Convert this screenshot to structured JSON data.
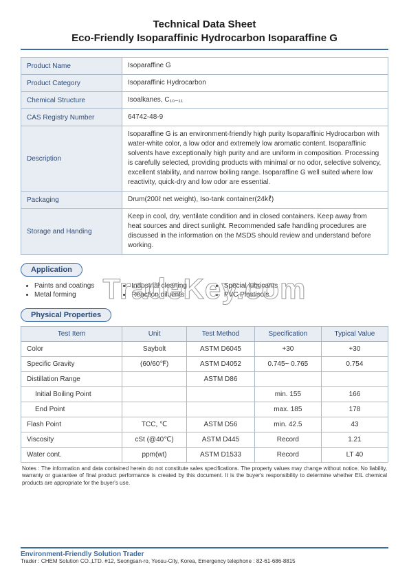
{
  "title_line1": "Technical Data Sheet",
  "title_line2": "Eco-Friendly Isoparaffinic Hydrocarbon Isoparaffine G",
  "info": [
    {
      "label": "Product Name",
      "value": "Isoparaffine G"
    },
    {
      "label": "Product Category",
      "value": "Isoparaffinic Hydrocarbon"
    },
    {
      "label": "Chemical Structure",
      "value": "Isoalkanes, C₁₀₋₁₁"
    },
    {
      "label": "CAS Registry Number",
      "value": "64742-48-9"
    },
    {
      "label": "Description",
      "value": "Isoparaffine G  is an environment-friendly high purity Isoparaffinic Hydrocarbon with water-white color, a low odor and extremely low aromatic content. Isoparaffinic solvents have exceptionally high purity and are uniform in composition. Processing is carefully selected, providing products with minimal or no odor, selective solvency, excellent stability, and narrow boiling range. Isoparaffine G  well suited where low reactivity, quick-dry and low odor are essential."
    },
    {
      "label": "Packaging",
      "value": "Drum(200ℓ net weight), Iso-tank container(24㎘)"
    },
    {
      "label": "Storage and Handing",
      "value": "Keep in cool, dry, ventilate condition and in closed containers. Keep away from heat sources and direct sunlight. Recommended safe handling procedures are discussed in the information on the MSDS should review and understand before working."
    }
  ],
  "sections": {
    "app": "Application",
    "phys": "Physical Properties"
  },
  "apps": {
    "col1": [
      "Paints and coatings",
      "Metal forming"
    ],
    "col2": [
      "Industrial cleaning",
      "Reaction diluents"
    ],
    "col3": [
      "Special lubricants",
      "PVC Plastisols"
    ]
  },
  "phys": {
    "headers": [
      "Test Item",
      "Unit",
      "Test Method",
      "Specification",
      "Typical Value"
    ],
    "rows": [
      {
        "item": "Color",
        "indent": false,
        "unit": "Saybolt",
        "method": "ASTM D6045",
        "spec": "+30",
        "typ": "+30"
      },
      {
        "item": "Specific Gravity",
        "indent": false,
        "unit": "(60/60℉)",
        "method": "ASTM D4052",
        "spec": "0.745~ 0.765",
        "typ": "0.754"
      },
      {
        "item": "Distillation Range",
        "indent": false,
        "unit": "",
        "method": "ASTM D86",
        "spec": "",
        "typ": ""
      },
      {
        "item": "Initial Boiling Point",
        "indent": true,
        "unit": "",
        "method": "",
        "spec": "min. 155",
        "typ": "166"
      },
      {
        "item": "End Point",
        "indent": true,
        "unit": "",
        "method": "",
        "spec": "max. 185",
        "typ": "178"
      },
      {
        "item": "Flash Point",
        "indent": false,
        "unit": "TCC, ℃",
        "method": "ASTM D56",
        "spec": "min. 42.5",
        "typ": "43"
      },
      {
        "item": "Viscosity",
        "indent": false,
        "unit": "cSt (@40℃)",
        "method": "ASTM D445",
        "spec": "Record",
        "typ": "1.21"
      },
      {
        "item": "Water cont.",
        "indent": false,
        "unit": "ppm(wt)",
        "method": "ASTM D1533",
        "spec": "Record",
        "typ": "LT 40"
      }
    ]
  },
  "notes": "Notes : The information and data contained herein do not constitute sales specifications. The property values may change without notice. No liability, warranty or guarantee of final product performance is created by this document. It is the buyer's responsibility to determine whether EIL chemical products are appropriate for the buyer's use.",
  "footer": {
    "title": "Environment-Friendly Solution Trader",
    "sub": "Trader  : CHEM Solution CO.,LTD.   #12, Seongsan-ro, Yeosu-City, Korea,   Emergency telephone : 82-61-686-8815"
  },
  "watermark": "TradeKey.com",
  "colors": {
    "accent": "#3a6ba5",
    "header_bg": "#e8edf3",
    "border": "#a8b8c8"
  }
}
